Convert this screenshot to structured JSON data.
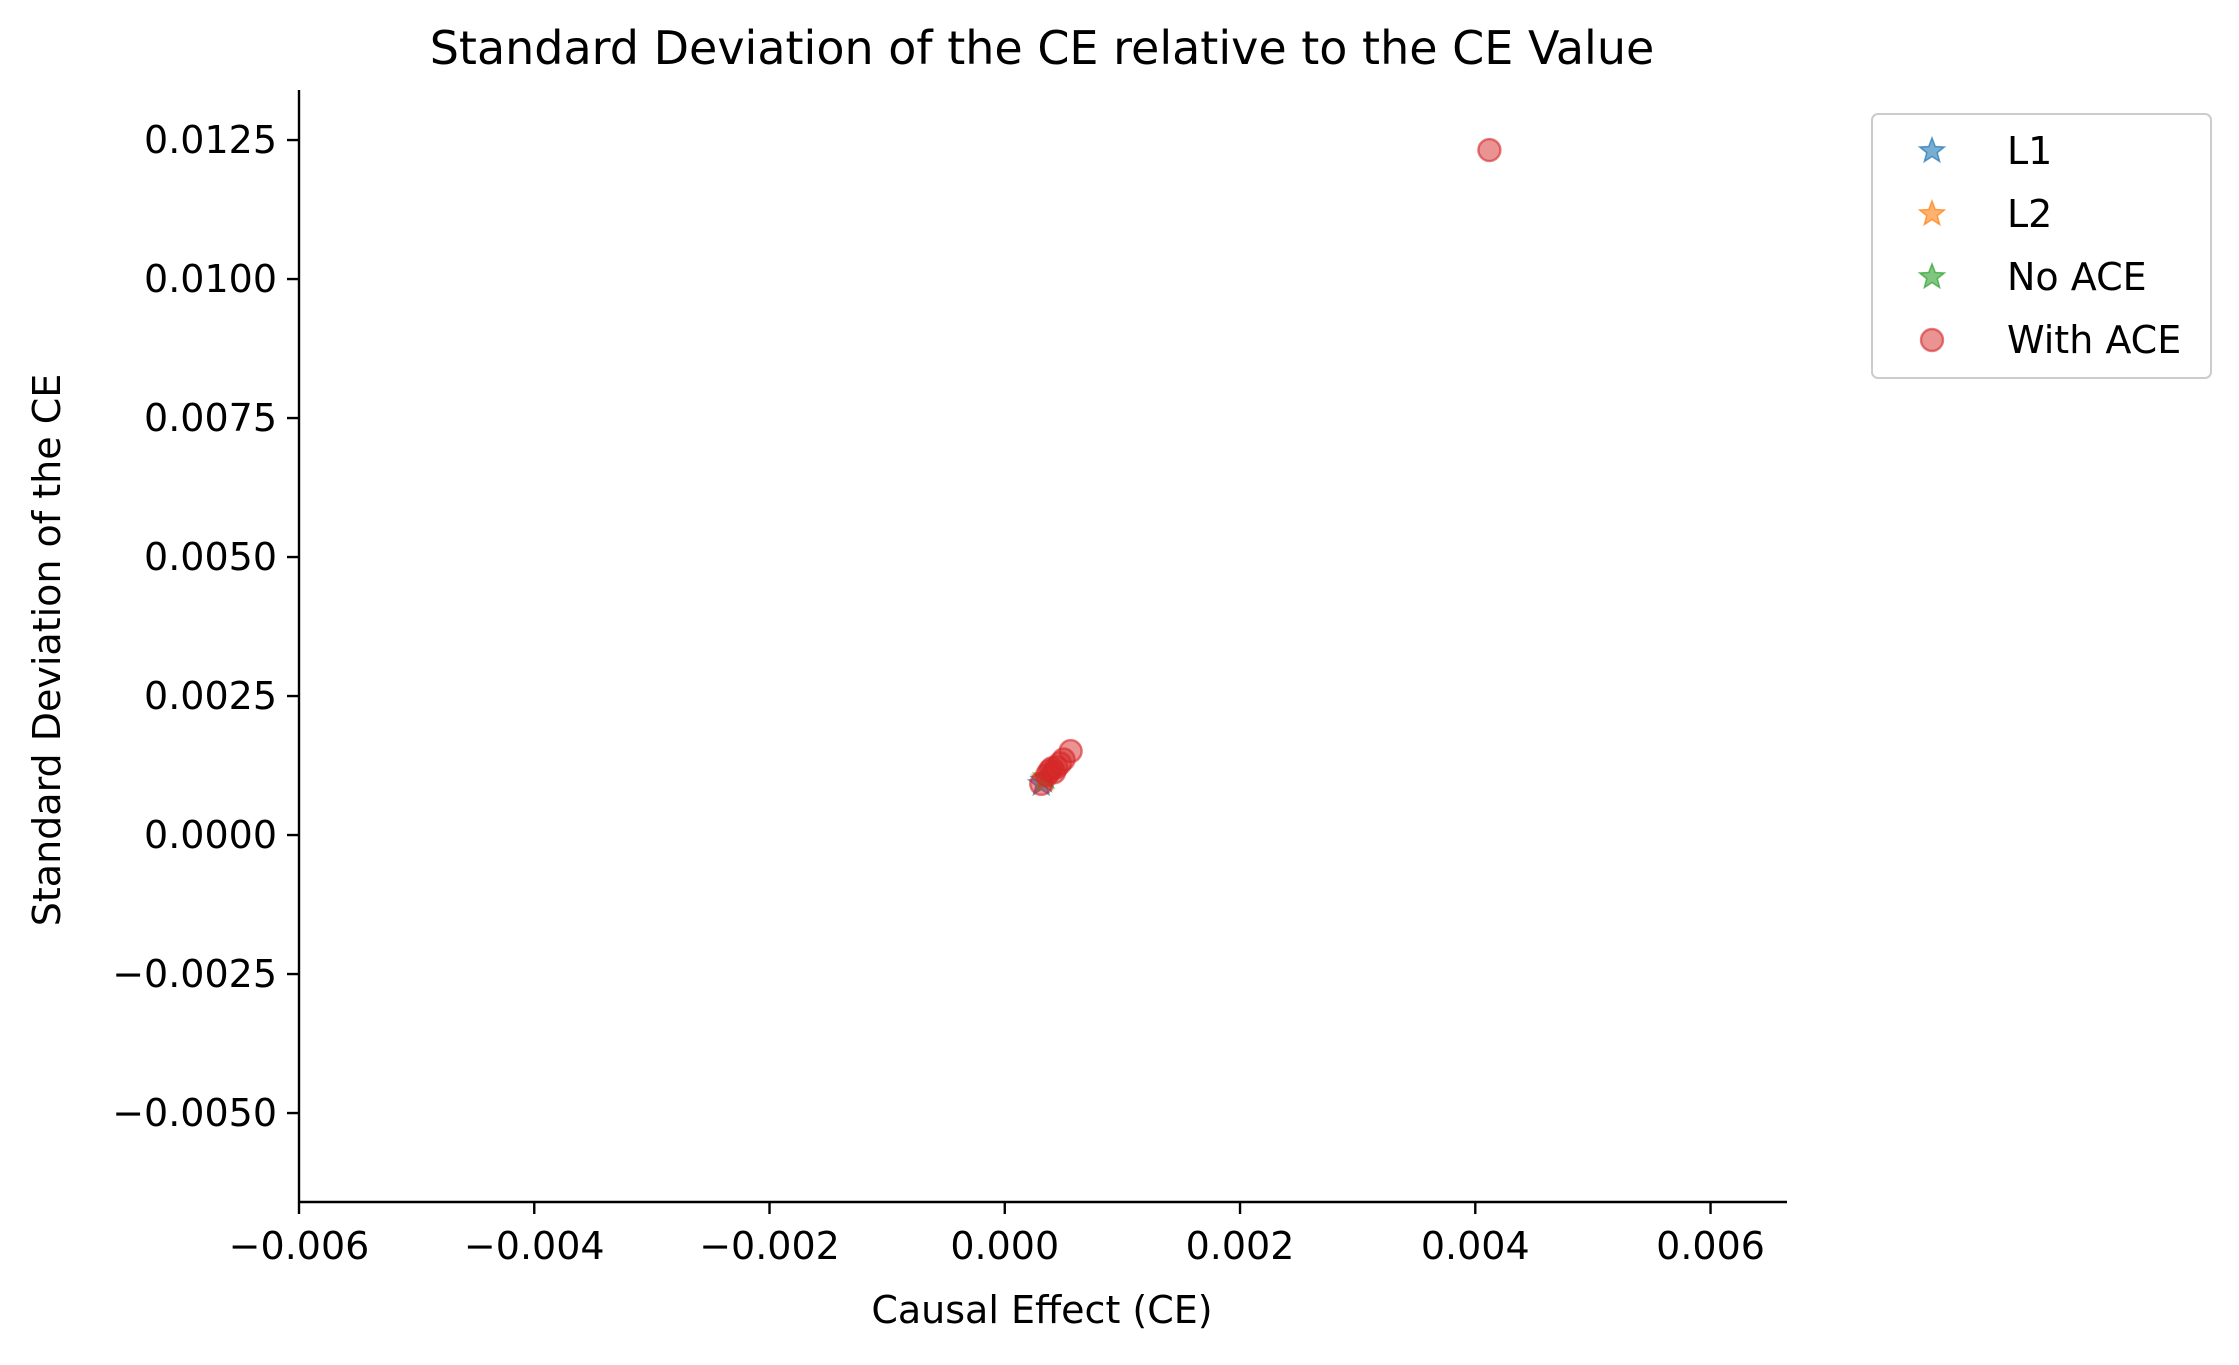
{
  "chart_data": {
    "type": "scatter",
    "title": "Standard Deviation of the CE relative to the CE Value",
    "xlabel": "Causal Effect (CE)",
    "ylabel": "Standard Deviation of the CE",
    "xlim": [
      -0.006,
      0.00665
    ],
    "ylim": [
      -0.0066,
      0.0134
    ],
    "xticks": [
      -0.006,
      -0.004,
      -0.002,
      0.0,
      0.002,
      0.004,
      0.006
    ],
    "xtick_labels": [
      "−0.006",
      "−0.004",
      "−0.002",
      "0.000",
      "0.002",
      "0.004",
      "0.006"
    ],
    "yticks": [
      -0.005,
      -0.0025,
      0.0,
      0.0025,
      0.005,
      0.0075,
      0.01,
      0.0125
    ],
    "ytick_labels": [
      "−0.0050",
      "−0.0025",
      "0.0000",
      "0.0025",
      "0.0050",
      "0.0075",
      "0.0100",
      "0.0125"
    ],
    "grid": false,
    "legend_position": "outside-top-right",
    "series": [
      {
        "name": "L1",
        "marker": "star",
        "color": "#1f77b4",
        "points": [
          {
            "x": 0.00031,
            "y": 0.00092
          },
          {
            "x": 0.00033,
            "y": 0.00098
          }
        ]
      },
      {
        "name": "L2",
        "marker": "star",
        "color": "#ff7f0e",
        "points": [
          {
            "x": 0.00034,
            "y": 0.00101
          }
        ]
      },
      {
        "name": "No ACE",
        "marker": "star",
        "color": "#2ca02c",
        "points": [
          {
            "x": 0.00035,
            "y": 0.00104
          }
        ]
      },
      {
        "name": "With ACE",
        "marker": "circle",
        "color": "#d62728",
        "points": [
          {
            "x": 0.00031,
            "y": 0.00092
          },
          {
            "x": 0.00036,
            "y": 0.00108
          },
          {
            "x": 0.00038,
            "y": 0.00115
          },
          {
            "x": 0.0004,
            "y": 0.0012
          },
          {
            "x": 0.00042,
            "y": 0.00113
          },
          {
            "x": 0.00044,
            "y": 0.00122
          },
          {
            "x": 0.00047,
            "y": 0.00129
          },
          {
            "x": 0.0005,
            "y": 0.00136
          },
          {
            "x": 0.00056,
            "y": 0.00151
          },
          {
            "x": 0.00412,
            "y": 0.01232
          }
        ]
      }
    ]
  }
}
